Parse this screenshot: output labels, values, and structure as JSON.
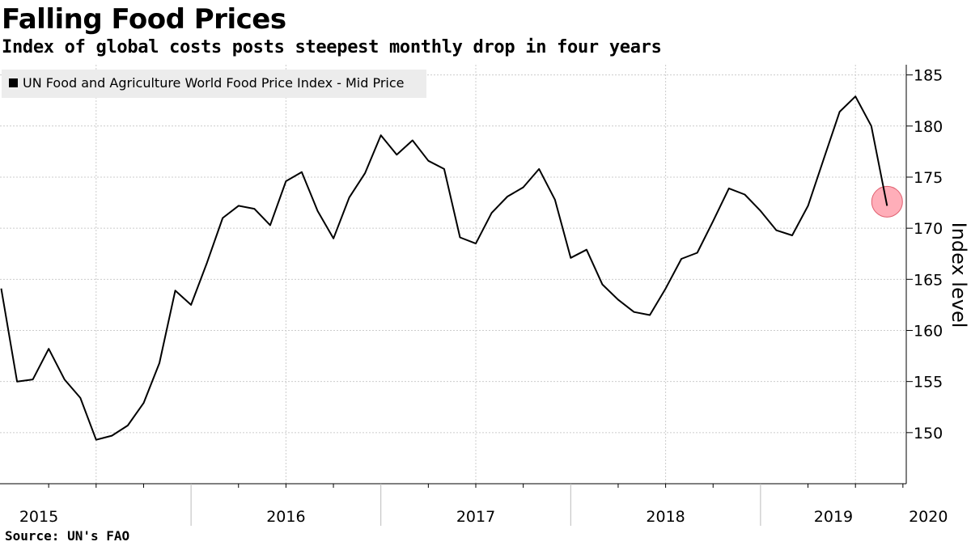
{
  "header": {
    "title": "Falling Food Prices",
    "subtitle": "Index of global costs posts steepest monthly drop in four years"
  },
  "footer": {
    "source": "Source: UN's FAO"
  },
  "colors": {
    "line": "#000000",
    "grid": "#cccccc",
    "legend_bg": "#ececec",
    "highlight_fill": "#ff9aa8",
    "highlight_stroke": "#e06070"
  },
  "chart_data": {
    "type": "line",
    "title": "Falling Food Prices",
    "subtitle": "Index of global costs posts steepest monthly drop in four years",
    "xlabel": "",
    "ylabel": "Index level",
    "ylim": [
      145,
      186
    ],
    "yticks": [
      150,
      155,
      160,
      165,
      170,
      175,
      180,
      185
    ],
    "grid": true,
    "legend_position": "top-left",
    "x_start": "2015-01",
    "x_end": "2020-03",
    "year_labels": [
      "2015",
      "2016",
      "2017",
      "2018",
      "2019",
      "2020"
    ],
    "series": [
      {
        "name": "UN Food and Agriculture World Food Price Index - Mid Price",
        "values": [
          164.1,
          155.0,
          155.2,
          158.2,
          155.2,
          153.4,
          149.3,
          149.7,
          150.7,
          152.9,
          156.8,
          163.9,
          162.5,
          166.6,
          171.0,
          172.2,
          171.9,
          170.3,
          174.6,
          175.5,
          171.7,
          169.0,
          173.0,
          175.4,
          179.1,
          177.2,
          178.6,
          176.6,
          175.8,
          169.1,
          168.5,
          171.5,
          173.1,
          174.0,
          175.8,
          172.8,
          167.1,
          167.9,
          164.5,
          163.0,
          161.8,
          161.5,
          164.1,
          167.0,
          167.6,
          170.7,
          173.9,
          173.3,
          171.7,
          169.8,
          169.3,
          172.2,
          176.8,
          181.4,
          182.9,
          180.0,
          172.2
        ],
        "annotation": {
          "type": "highlight-circle",
          "point": "last",
          "value": 172.2
        }
      }
    ]
  }
}
